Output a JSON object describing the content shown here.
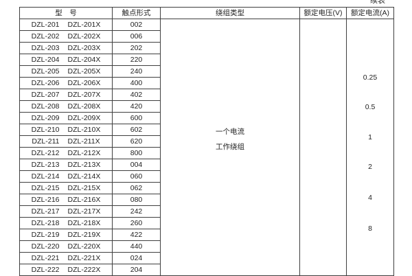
{
  "table": {
    "continued_label": "续表",
    "headers": [
      "型　号",
      "触点形式",
      "绕组类型",
      "额定电压(V)",
      "额定电流(A)"
    ],
    "winding_type_lines": [
      "一个电流",
      "工作绕组"
    ],
    "rated_voltage_value": "",
    "current_values": [
      "0.25",
      "0.5",
      "1",
      "2",
      "4",
      "8"
    ],
    "rows": [
      {
        "model": "DZL-201",
        "model_x": "DZL-201X",
        "contact": "002"
      },
      {
        "model": "DZL-202",
        "model_x": "DZL-202X",
        "contact": "006"
      },
      {
        "model": "DZL-203",
        "model_x": "DZL-203X",
        "contact": "202"
      },
      {
        "model": "DZL-204",
        "model_x": "DZL-204X",
        "contact": "220"
      },
      {
        "model": "DZL-205",
        "model_x": "DZL-205X",
        "contact": "240"
      },
      {
        "model": "DZL-206",
        "model_x": "DZL-206X",
        "contact": "400"
      },
      {
        "model": "DZL-207",
        "model_x": "DZL-207X",
        "contact": "402"
      },
      {
        "model": "DZL-208",
        "model_x": "DZL-208X",
        "contact": "420"
      },
      {
        "model": "DZL-209",
        "model_x": "DZL-209X",
        "contact": "600"
      },
      {
        "model": "DZL-210",
        "model_x": "DZL-210X",
        "contact": "602"
      },
      {
        "model": "DZL-211",
        "model_x": "DZL-211X",
        "contact": "620"
      },
      {
        "model": "DZL-212",
        "model_x": "DZL-212X",
        "contact": "800"
      },
      {
        "model": "DZL-213",
        "model_x": "DZL-213X",
        "contact": "004"
      },
      {
        "model": "DZL-214",
        "model_x": "DZL-214X",
        "contact": "060"
      },
      {
        "model": "DZL-215",
        "model_x": "DZL-215X",
        "contact": "062"
      },
      {
        "model": "DZL-216",
        "model_x": "DZL-216X",
        "contact": "080"
      },
      {
        "model": "DZL-217",
        "model_x": "DZL-217X",
        "contact": "242"
      },
      {
        "model": "DZL-218",
        "model_x": "DZL-218X",
        "contact": "260"
      },
      {
        "model": "DZL-219",
        "model_x": "DZL-219X",
        "contact": "422"
      },
      {
        "model": "DZL-220",
        "model_x": "DZL-220X",
        "contact": "440"
      },
      {
        "model": "DZL-221",
        "model_x": "DZL-221X",
        "contact": "024"
      },
      {
        "model": "DZL-222",
        "model_x": "DZL-222X",
        "contact": "204"
      }
    ]
  }
}
